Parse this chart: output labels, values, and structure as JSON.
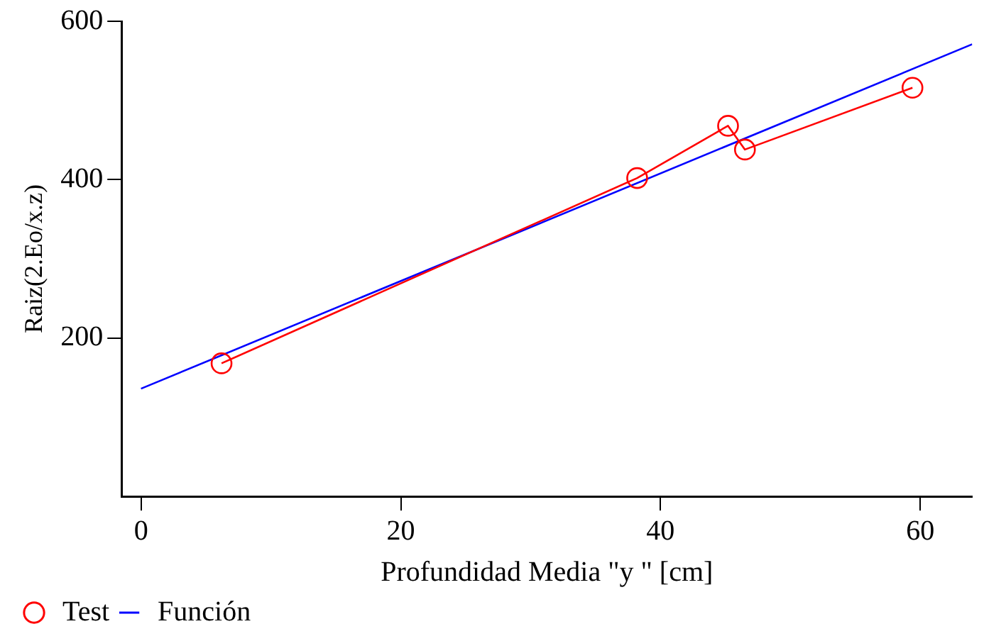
{
  "chart_data": {
    "type": "line",
    "xlabel": "Profundidad Media \"y \" [cm]",
    "ylabel": "Raiz(2.Eo/x.z)",
    "xlim": [
      -1.5,
      64
    ],
    "ylim": [
      0,
      600
    ],
    "xticks": [
      0,
      20,
      40,
      60
    ],
    "yticks": [
      200,
      400,
      600
    ],
    "grid": false,
    "legend": "bottom left",
    "series": [
      {
        "name": "Test",
        "color": "#ff0000",
        "marker": "circle",
        "x": [
          6.2,
          38.2,
          45.2,
          46.5,
          59.4
        ],
        "values": [
          168,
          402,
          468,
          438,
          516
        ]
      },
      {
        "name": "Función",
        "color": "#0000ff",
        "marker": "none",
        "x": [
          0,
          64
        ],
        "values": [
          136,
          571
        ]
      }
    ]
  }
}
